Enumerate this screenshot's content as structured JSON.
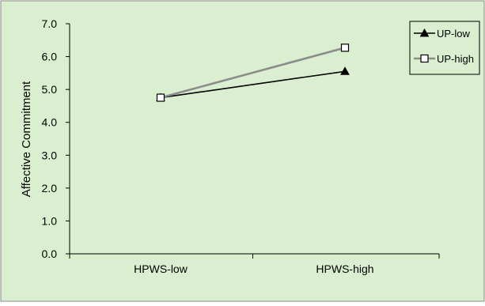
{
  "chart_data": {
    "type": "line",
    "title": "",
    "xlabel": "",
    "ylabel": "Affective Commitment",
    "categories": [
      "HPWS-low",
      "HPWS-high"
    ],
    "ylim": [
      0.0,
      7.0
    ],
    "yticks": [
      "0.0",
      "1.0",
      "2.0",
      "3.0",
      "4.0",
      "5.0",
      "6.0",
      "7.0"
    ],
    "grid": false,
    "legend_position": "top-right",
    "background_color": "#d9efcf",
    "series": [
      {
        "name": "UP-low",
        "values": [
          4.75,
          5.55
        ],
        "color": "#000000",
        "marker": "filled-triangle"
      },
      {
        "name": "UP-high",
        "values": [
          4.75,
          6.27
        ],
        "color": "#8c8c8c",
        "marker": "open-square"
      }
    ]
  }
}
